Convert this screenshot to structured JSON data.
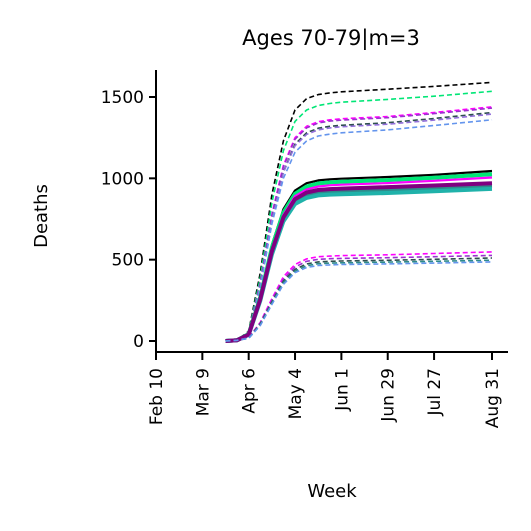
{
  "chart_data": {
    "type": "line",
    "title": "Ages 70-79|m=3",
    "xlabel": "Week",
    "ylabel": "Deaths",
    "x_ticks": [
      "Feb 10",
      "Mar 9",
      "Apr 6",
      "May 4",
      "Jun 1",
      "Jun 29",
      "Jul 27",
      "Aug 31"
    ],
    "y_ticks": [
      0,
      500,
      1000,
      1500
    ],
    "ylim": [
      -70,
      1680
    ],
    "grid": false,
    "legend": "none",
    "x": [
      "Mar 23",
      "Mar 30",
      "Apr 6",
      "Apr 13",
      "Apr 20",
      "Apr 27",
      "May 4",
      "May 11",
      "May 18",
      "May 25",
      "Jun 1",
      "Jun 29",
      "Jul 27",
      "Aug 31"
    ],
    "series": [
      {
        "style": "dashed",
        "color": "#000000",
        "values": [
          0,
          5,
          60,
          420,
          900,
          1230,
          1420,
          1490,
          1515,
          1525,
          1532,
          1548,
          1565,
          1590
        ]
      },
      {
        "style": "dashed",
        "color": "#00e676",
        "values": [
          0,
          5,
          55,
          390,
          850,
          1170,
          1350,
          1420,
          1448,
          1460,
          1468,
          1485,
          1505,
          1535
        ]
      },
      {
        "style": "dashed",
        "color": "#ff00ff",
        "values": [
          0,
          5,
          50,
          360,
          780,
          1080,
          1250,
          1320,
          1348,
          1360,
          1366,
          1380,
          1405,
          1440
        ]
      },
      {
        "style": "dashed",
        "color": "#9a32cd",
        "values": [
          0,
          5,
          50,
          355,
          770,
          1070,
          1240,
          1310,
          1340,
          1352,
          1358,
          1373,
          1398,
          1432
        ]
      },
      {
        "style": "dashed",
        "color": "#2f4f4f",
        "values": [
          0,
          5,
          48,
          345,
          750,
          1040,
          1210,
          1280,
          1308,
          1320,
          1326,
          1342,
          1368,
          1405
        ]
      },
      {
        "style": "dashed",
        "color": "#9370db",
        "values": [
          0,
          5,
          48,
          340,
          745,
          1035,
          1200,
          1270,
          1298,
          1310,
          1317,
          1333,
          1358,
          1395
        ]
      },
      {
        "style": "dashed",
        "color": "#6495ed",
        "values": [
          0,
          5,
          45,
          330,
          720,
          1000,
          1160,
          1230,
          1260,
          1272,
          1280,
          1298,
          1325,
          1360
        ]
      },
      {
        "style": "solid",
        "color": "#000000",
        "values": [
          0,
          5,
          45,
          280,
          590,
          810,
          925,
          970,
          987,
          994,
          998,
          1008,
          1022,
          1045
        ]
      },
      {
        "style": "solid-thick",
        "color": "#00e676",
        "values": [
          0,
          5,
          43,
          270,
          575,
          790,
          905,
          950,
          968,
          975,
          979,
          989,
          1003,
          1025
        ]
      },
      {
        "style": "solid",
        "color": "#ff00ff",
        "values": [
          0,
          5,
          42,
          265,
          565,
          775,
          890,
          932,
          950,
          957,
          961,
          971,
          985,
          1005
        ]
      },
      {
        "style": "solid-thick",
        "color": "#2e8b8b",
        "values": [
          0,
          5,
          40,
          255,
          545,
          750,
          860,
          900,
          915,
          920,
          922,
          930,
          940,
          955
        ]
      },
      {
        "style": "solid-thick",
        "color": "#20b2aa",
        "values": [
          0,
          5,
          38,
          248,
          532,
          735,
          842,
          880,
          895,
          900,
          902,
          910,
          921,
          935
        ]
      },
      {
        "style": "solid-thick",
        "color": "#800080",
        "values": [
          0,
          5,
          40,
          258,
          552,
          760,
          872,
          913,
          928,
          934,
          937,
          946,
          956,
          970
        ]
      },
      {
        "style": "dashed",
        "color": "#ff00ff",
        "values": [
          0,
          4,
          20,
          115,
          260,
          395,
          470,
          505,
          518,
          522,
          525,
          530,
          538,
          548
        ]
      },
      {
        "style": "dashed",
        "color": "#9a32cd",
        "values": [
          0,
          4,
          19,
          110,
          250,
          380,
          455,
          490,
          502,
          506,
          508,
          512,
          518,
          526
        ]
      },
      {
        "style": "dashed",
        "color": "#2f4f4f",
        "values": [
          0,
          4,
          18,
          105,
          240,
          368,
          440,
          474,
          486,
          490,
          492,
          496,
          502,
          510
        ]
      },
      {
        "style": "dashed",
        "color": "#2e8b8b",
        "values": [
          0,
          4,
          17,
          100,
          232,
          358,
          430,
          463,
          475,
          479,
          481,
          485,
          490,
          497
        ]
      },
      {
        "style": "dashed",
        "color": "#6495ed",
        "values": [
          0,
          4,
          16,
          95,
          225,
          348,
          420,
          452,
          464,
          468,
          470,
          474,
          479,
          486
        ]
      }
    ]
  }
}
